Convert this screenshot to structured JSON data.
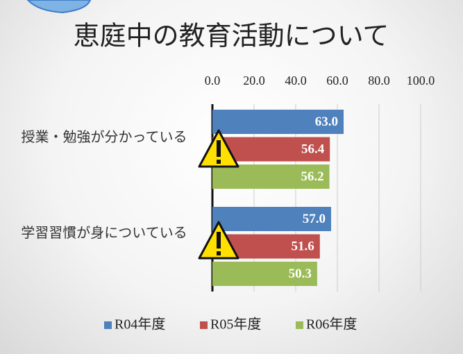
{
  "chart_data": {
    "type": "hbar",
    "title": "恵庭中の教育活動について",
    "categories": [
      "授業・勉強が分かっている",
      "学習習慣が身についている"
    ],
    "series": [
      {
        "name": "R04年度",
        "color": "#4f81bd",
        "values": [
          63.0,
          57.0
        ],
        "value_labels": [
          "63.0",
          "57.0"
        ]
      },
      {
        "name": "R05年度",
        "color": "#c0504d",
        "values": [
          56.4,
          51.6
        ],
        "value_labels": [
          "56.4",
          "51.6"
        ]
      },
      {
        "name": "R06年度",
        "color": "#9bbb59",
        "values": [
          56.2,
          50.3
        ],
        "value_labels": [
          "56.2",
          "50.3"
        ]
      }
    ],
    "xlim": [
      0,
      100
    ],
    "xticks": [
      {
        "value": 0,
        "label": "0.0"
      },
      {
        "value": 20,
        "label": "20.0"
      },
      {
        "value": 40,
        "label": "40.0"
      },
      {
        "value": 60,
        "label": "60.0"
      },
      {
        "value": 80,
        "label": "80.0"
      },
      {
        "value": 100,
        "label": "100.0"
      }
    ],
    "grid": true,
    "legend": "bottom"
  }
}
